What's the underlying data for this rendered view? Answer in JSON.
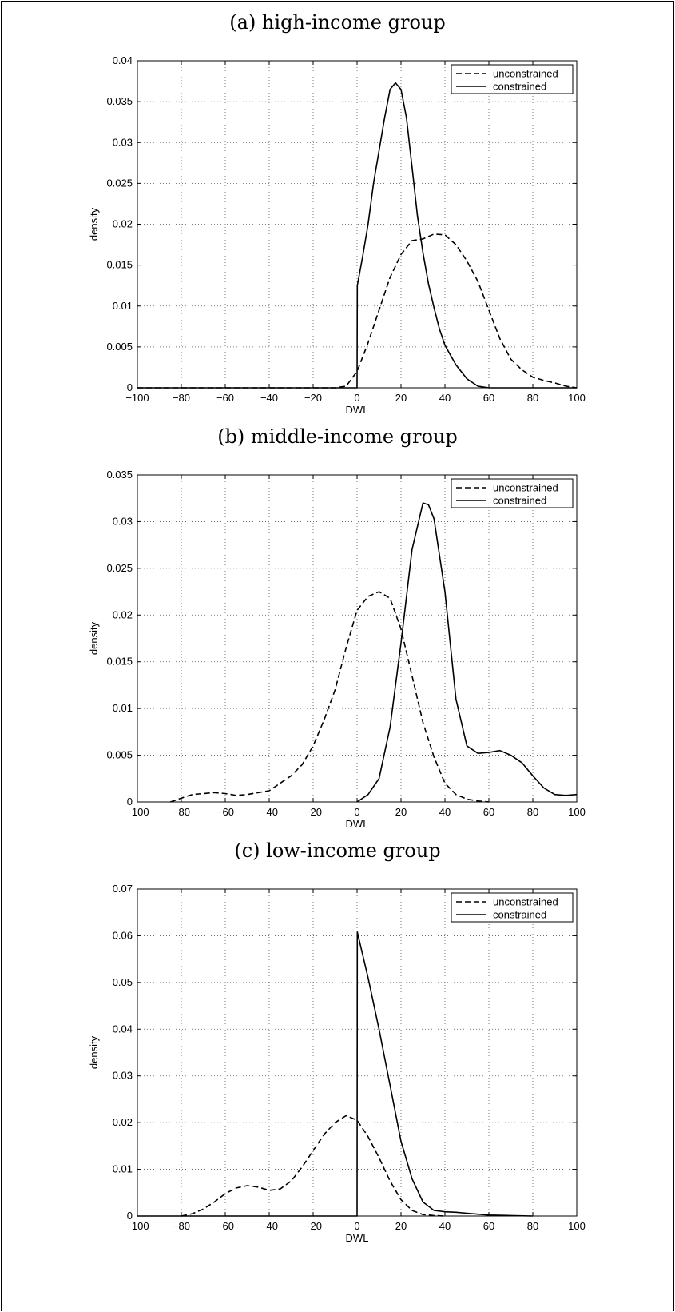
{
  "panels": [
    {
      "title": "(a) high-income group"
    },
    {
      "title": "(b) middle-income group"
    },
    {
      "title": "(c) low-income group"
    }
  ],
  "chart_data": [
    {
      "type": "line",
      "title": "(a) high-income group",
      "xlabel": "DWL",
      "ylabel": "density",
      "xlim": [
        -100,
        100
      ],
      "ylim": [
        0,
        0.04
      ],
      "xticks": [
        -100,
        -80,
        -60,
        -40,
        -20,
        0,
        20,
        40,
        60,
        80,
        100
      ],
      "xtick_labels": [
        "−100",
        "−80",
        "−60",
        "−40",
        "−20",
        "0",
        "20",
        "40",
        "60",
        "80",
        "100"
      ],
      "yticks": [
        0,
        0.005,
        0.01,
        0.015,
        0.02,
        0.025,
        0.03,
        0.035,
        0.04
      ],
      "ytick_labels": [
        "0",
        "0.005",
        "0.01",
        "0.015",
        "0.02",
        "0.025",
        "0.03",
        "0.035",
        "0.04"
      ],
      "grid": true,
      "legend_position": "top-right",
      "series": [
        {
          "name": "unconstrained",
          "style": "dashed",
          "x": [
            -100,
            -10,
            -5,
            0,
            5,
            10,
            15,
            20,
            25,
            30,
            35,
            40,
            45,
            50,
            55,
            60,
            65,
            70,
            75,
            80,
            85,
            90,
            95,
            100
          ],
          "y": [
            0,
            0,
            0.0002,
            0.002,
            0.0055,
            0.0095,
            0.0135,
            0.0163,
            0.018,
            0.0182,
            0.0188,
            0.0187,
            0.0175,
            0.0155,
            0.013,
            0.0095,
            0.006,
            0.0035,
            0.0022,
            0.0013,
            0.0009,
            0.0006,
            0.0002,
            0
          ],
          "color": "#000000"
        },
        {
          "name": "constrained",
          "style": "solid",
          "x": [
            -100,
            -0.5,
            0,
            0.1,
            2.5,
            5,
            7.5,
            10,
            12.5,
            15,
            17.5,
            20,
            22.5,
            25,
            27.5,
            30,
            32.5,
            35,
            37.5,
            40,
            45,
            50,
            55,
            60,
            100
          ],
          "y": [
            0,
            0,
            0,
            0.0125,
            0.016,
            0.02,
            0.025,
            0.029,
            0.033,
            0.0365,
            0.0373,
            0.0365,
            0.033,
            0.027,
            0.021,
            0.0165,
            0.0127,
            0.0098,
            0.0072,
            0.0052,
            0.0028,
            0.0011,
            0.0002,
            0,
            0
          ],
          "color": "#000000"
        }
      ]
    },
    {
      "type": "line",
      "title": "(b) middle-income group",
      "xlabel": "DWL",
      "ylabel": "density",
      "xlim": [
        -100,
        100
      ],
      "ylim": [
        0,
        0.035
      ],
      "xticks": [
        -100,
        -80,
        -60,
        -40,
        -20,
        0,
        20,
        40,
        60,
        80,
        100
      ],
      "xtick_labels": [
        "−100",
        "−80",
        "−60",
        "−40",
        "−20",
        "0",
        "20",
        "40",
        "60",
        "80",
        "100"
      ],
      "yticks": [
        0,
        0.005,
        0.01,
        0.015,
        0.02,
        0.025,
        0.03,
        0.035
      ],
      "ytick_labels": [
        "0",
        "0.005",
        "0.01",
        "0.015",
        "0.02",
        "0.025",
        "0.03",
        "0.035"
      ],
      "grid": true,
      "legend_position": "top-right",
      "series": [
        {
          "name": "unconstrained",
          "style": "dashed",
          "x": [
            -85,
            -80,
            -75,
            -70,
            -65,
            -60,
            -55,
            -50,
            -45,
            -40,
            -35,
            -30,
            -25,
            -20,
            -15,
            -10,
            -5,
            0,
            5,
            10,
            15,
            20,
            25,
            30,
            35,
            40,
            45,
            50,
            55,
            60
          ],
          "y": [
            0,
            0.0004,
            0.0008,
            0.0009,
            0.001,
            0.0009,
            0.0007,
            0.0008,
            0.001,
            0.0012,
            0.002,
            0.0028,
            0.004,
            0.006,
            0.0088,
            0.012,
            0.0165,
            0.0205,
            0.022,
            0.0225,
            0.0218,
            0.0185,
            0.0135,
            0.0085,
            0.0048,
            0.002,
            0.0008,
            0.0003,
            0.0001,
            0
          ],
          "color": "#000000"
        },
        {
          "name": "constrained",
          "style": "solid",
          "x": [
            0,
            5,
            10,
            15,
            20,
            25,
            30,
            32.5,
            35,
            40,
            45,
            50,
            55,
            60,
            65,
            70,
            75,
            80,
            85,
            90,
            95,
            100
          ],
          "y": [
            0,
            0.0008,
            0.0025,
            0.008,
            0.017,
            0.027,
            0.032,
            0.0318,
            0.0303,
            0.0225,
            0.011,
            0.006,
            0.0052,
            0.0053,
            0.0055,
            0.005,
            0.0042,
            0.0028,
            0.0015,
            0.0008,
            0.0007,
            0.0008
          ],
          "color": "#000000"
        }
      ]
    },
    {
      "type": "line",
      "title": "(c) low-income group",
      "xlabel": "DWL",
      "ylabel": "density",
      "xlim": [
        -100,
        100
      ],
      "ylim": [
        0,
        0.07
      ],
      "xticks": [
        -100,
        -80,
        -60,
        -40,
        -20,
        0,
        20,
        40,
        60,
        80,
        100
      ],
      "xtick_labels": [
        "−100",
        "−80",
        "−60",
        "−40",
        "−20",
        "0",
        "20",
        "40",
        "60",
        "80",
        "100"
      ],
      "yticks": [
        0,
        0.01,
        0.02,
        0.03,
        0.04,
        0.05,
        0.06,
        0.07
      ],
      "ytick_labels": [
        "0",
        "0.01",
        "0.02",
        "0.03",
        "0.04",
        "0.05",
        "0.06",
        "0.07"
      ],
      "grid": true,
      "legend_position": "top-right",
      "series": [
        {
          "name": "unconstrained",
          "style": "dashed",
          "x": [
            -80,
            -75,
            -70,
            -65,
            -60,
            -55,
            -50,
            -45,
            -40,
            -35,
            -30,
            -25,
            -20,
            -15,
            -10,
            -5,
            0,
            5,
            10,
            15,
            20,
            25,
            30,
            35,
            40
          ],
          "y": [
            0,
            0.0005,
            0.0015,
            0.003,
            0.0048,
            0.006,
            0.0065,
            0.0062,
            0.0055,
            0.0058,
            0.0075,
            0.0105,
            0.014,
            0.0175,
            0.02,
            0.0215,
            0.0205,
            0.017,
            0.0125,
            0.0075,
            0.0035,
            0.0012,
            0.0003,
            0.0001,
            0
          ],
          "color": "#000000"
        },
        {
          "name": "constrained",
          "style": "solid",
          "x": [
            -100,
            -0.5,
            0,
            0.1,
            5,
            10,
            15,
            20,
            25,
            30,
            35,
            40,
            45,
            50,
            55,
            60,
            70,
            80
          ],
          "y": [
            0,
            0,
            0,
            0.0608,
            0.051,
            0.04,
            0.028,
            0.016,
            0.008,
            0.003,
            0.0012,
            0.0009,
            0.0008,
            0.0006,
            0.0004,
            0.0002,
            0.0001,
            0
          ],
          "color": "#000000"
        }
      ]
    }
  ]
}
